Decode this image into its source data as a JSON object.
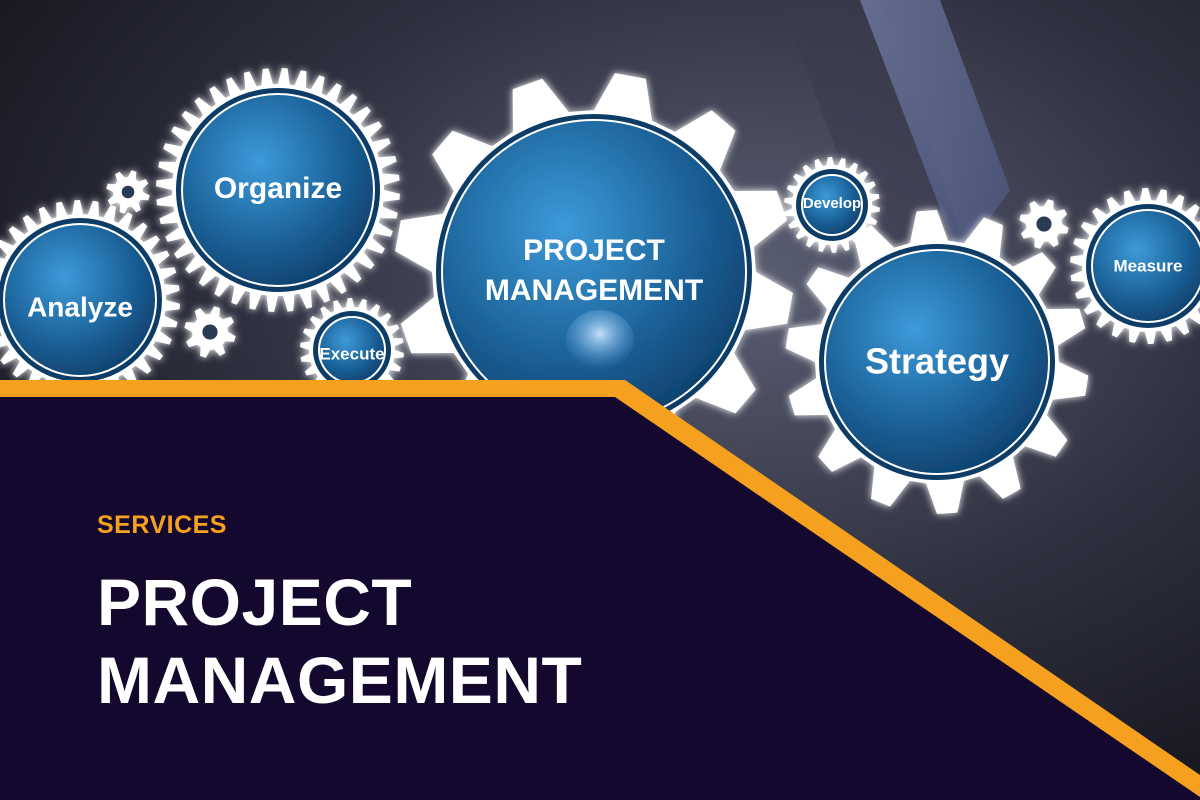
{
  "gears": {
    "organize": "Organize",
    "analyze": "Analyze",
    "execute": "Execute",
    "center_line1": "PROJECT",
    "center_line2": "MANAGEMENT",
    "develop": "Develop",
    "strategy": "Strategy",
    "measure": "Measure"
  },
  "hero": {
    "eyebrow": "SERVICES",
    "title_line1": "PROJECT",
    "title_line2": "MANAGEMENT"
  },
  "colors": {
    "panel": "#14082e",
    "accent": "#f5a01f",
    "gear_fill": "#1e6fae",
    "gear_ring": "#ffffff"
  }
}
